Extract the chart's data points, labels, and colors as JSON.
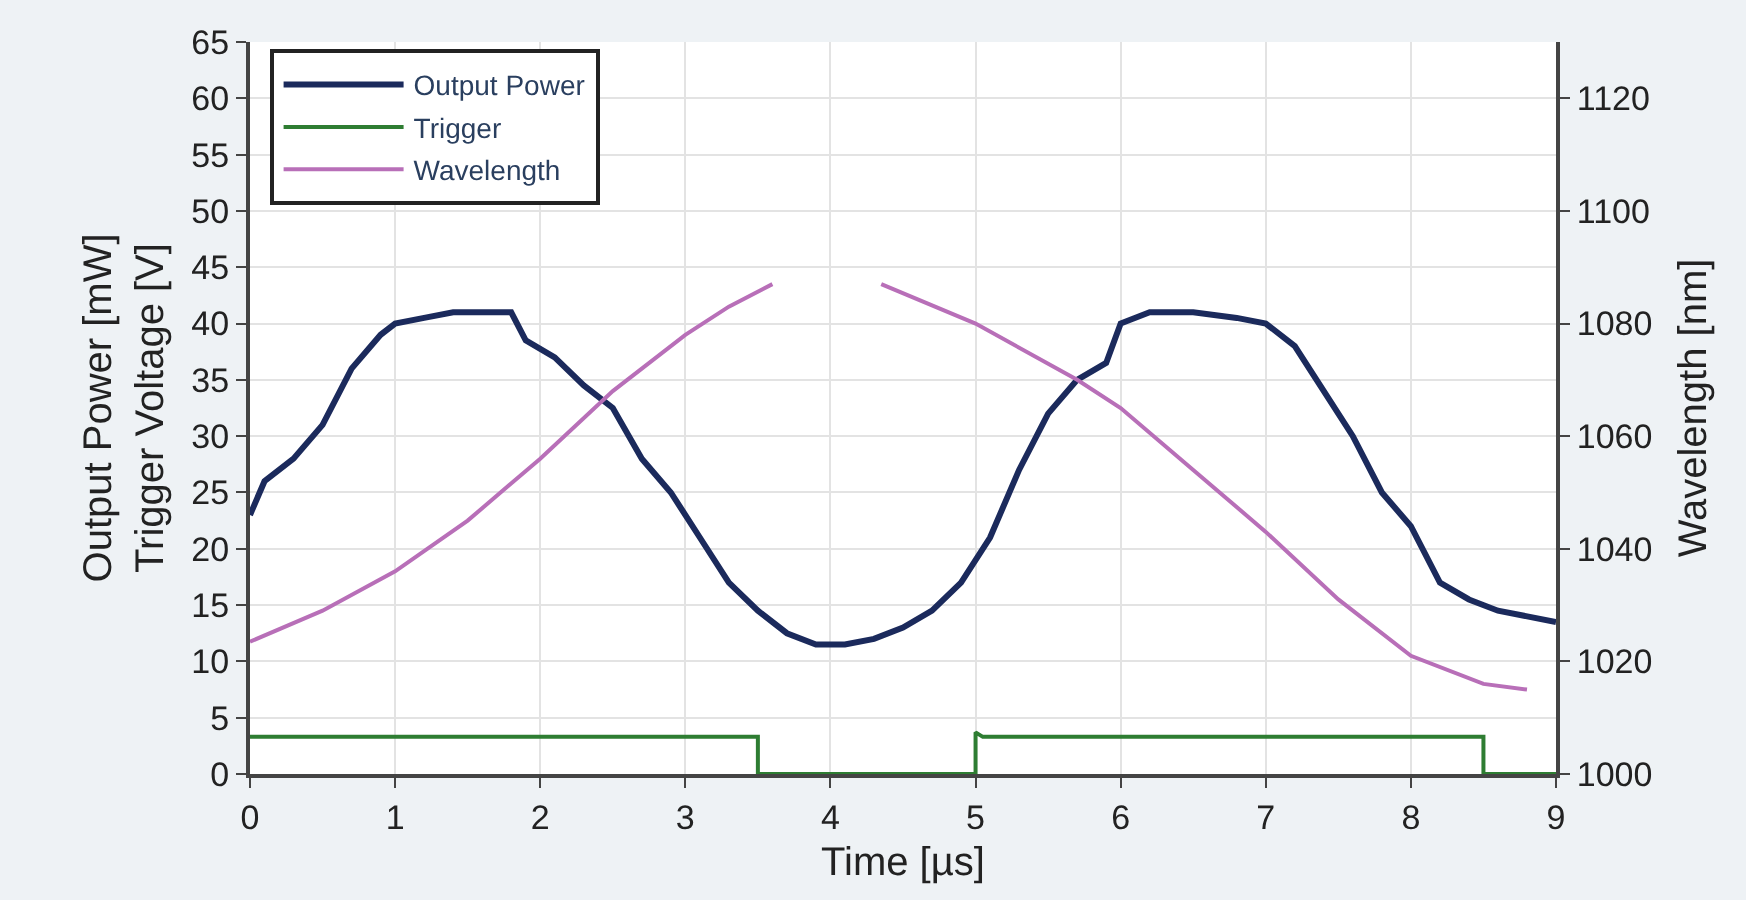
{
  "chart_data": {
    "type": "line",
    "xlabel": "Time [µs]",
    "ylabel": "Output Power [mW]\nTrigger Voltage [V]",
    "y2label": "Wavelength [nm]",
    "xlim": [
      0,
      9
    ],
    "xticks": [
      0,
      1,
      2,
      3,
      4,
      5,
      6,
      7,
      8,
      9
    ],
    "ylim": [
      0,
      65
    ],
    "yticks": [
      0,
      5,
      10,
      15,
      20,
      25,
      30,
      35,
      40,
      45,
      50,
      55,
      60,
      65
    ],
    "y2lim": [
      1000,
      1130
    ],
    "y2ticks": [
      1000,
      1020,
      1040,
      1060,
      1080,
      1100,
      1120
    ],
    "grid": true,
    "legend": "top left",
    "marker": "none",
    "line_style": "solid",
    "series": [
      {
        "name": "Output Power",
        "color": "#1b2a5c",
        "x": [
          0,
          0.1,
          0.3,
          0.5,
          0.7,
          0.9,
          1.0,
          1.2,
          1.4,
          1.6,
          1.8,
          1.9,
          2.1,
          2.3,
          2.5,
          2.7,
          2.9,
          3.1,
          3.3,
          3.5,
          3.7,
          3.9,
          4.1,
          4.3,
          4.5,
          4.7,
          4.9,
          5.1,
          5.3,
          5.5,
          5.7,
          5.9,
          6.0,
          6.2,
          6.5,
          6.8,
          7.0,
          7.2,
          7.4,
          7.6,
          7.8,
          8.0,
          8.2,
          8.4,
          8.6,
          9.0
        ],
        "values": [
          23,
          26,
          28,
          31,
          36,
          39,
          40,
          40.5,
          41,
          41,
          41,
          38.5,
          37,
          34.5,
          32.5,
          28,
          25,
          21,
          17,
          14.5,
          12.5,
          11.5,
          11.5,
          12,
          13,
          14.5,
          17,
          21,
          27,
          32,
          35,
          36.5,
          40,
          41,
          41,
          40.5,
          40,
          38,
          34,
          30,
          25,
          22,
          17,
          15.5,
          14.5,
          13.5
        ]
      },
      {
        "name": "Trigger",
        "color": "#2e7d32",
        "x": [
          0,
          3.5,
          3.5,
          5.0,
          5.0,
          5.05,
          8.5,
          8.5,
          9.0
        ],
        "values": [
          3.3,
          3.3,
          0,
          0,
          3.7,
          3.3,
          3.3,
          0,
          0
        ]
      },
      {
        "name": "Wavelength",
        "color": "#b86fb8",
        "axis": "y2",
        "x": [
          0,
          0.5,
          1.0,
          1.5,
          2.0,
          2.5,
          3.0,
          3.3,
          3.6,
          4.0,
          4.35,
          5.0,
          5.7,
          6.0,
          6.5,
          7.0,
          7.5,
          8.0,
          8.5,
          8.8
        ],
        "values": [
          1023.5,
          1029,
          1036,
          1045,
          1056,
          1068,
          1078,
          1083,
          1087,
          null,
          1087,
          1080,
          1070,
          1065,
          1054,
          1043,
          1031,
          1021,
          1016,
          1015
        ]
      }
    ]
  }
}
